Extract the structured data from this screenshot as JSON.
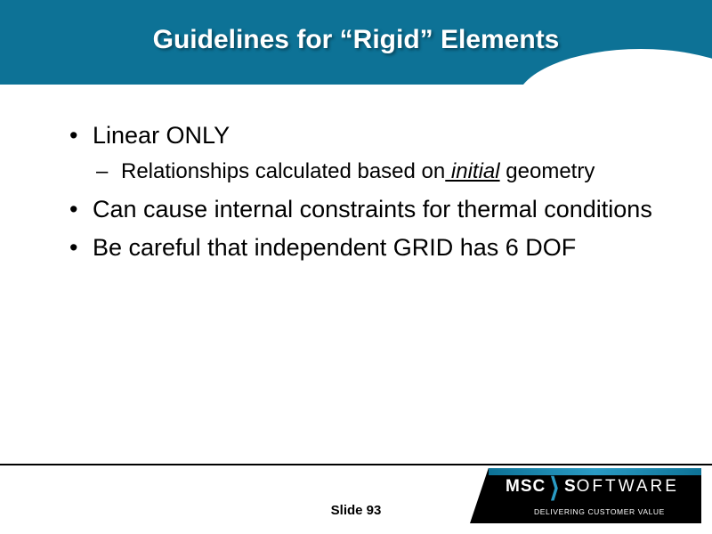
{
  "colors": {
    "header_bg": "#0d7296",
    "title_text": "#ffffff",
    "body_text": "#000000",
    "logo_bg": "#000000",
    "logo_accent": "#2a9bc4",
    "background": "#ffffff"
  },
  "typography": {
    "title_fontsize": 30,
    "body_fontsize": 27,
    "sub_fontsize": 24,
    "footer_fontsize": 15,
    "font_family": "Arial"
  },
  "title": "Guidelines for “Rigid” Elements",
  "bullets": [
    {
      "level": 1,
      "text": "Linear ONLY"
    },
    {
      "level": 2,
      "prefix": "Relationships calculated based on",
      "emphasis": " initial",
      "suffix": " geometry"
    },
    {
      "level": 1,
      "text": "Can cause internal constraints for thermal conditions"
    },
    {
      "level": 1,
      "text": "Be careful that independent GRID has 6 DOF"
    }
  ],
  "footer": {
    "slide_label": "Slide 93"
  },
  "logo": {
    "brand_left": "MSC",
    "brand_right": "OFTWARE",
    "brand_s": "S",
    "tagline": "DELIVERING CUSTOMER VALUE"
  }
}
